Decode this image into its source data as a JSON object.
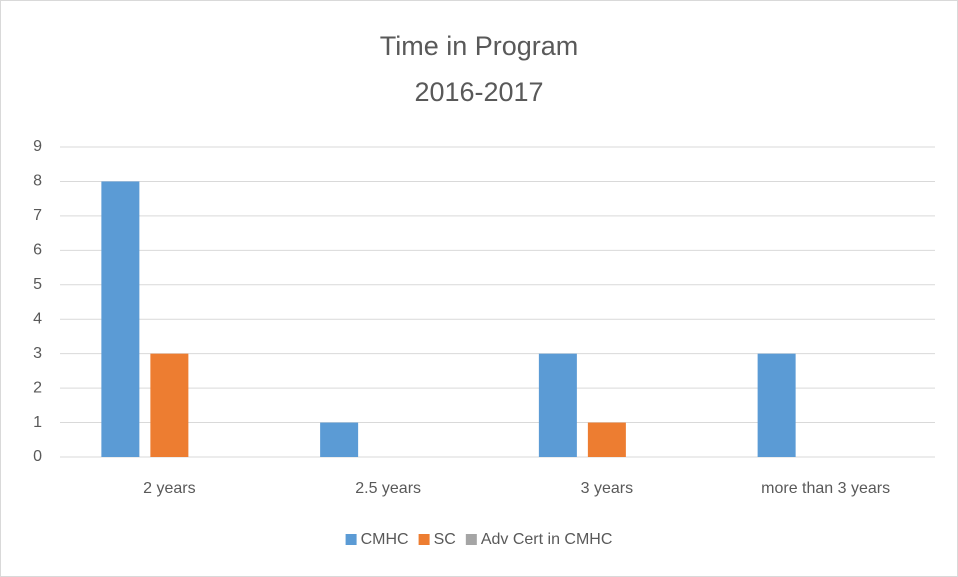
{
  "chart_data": {
    "type": "bar",
    "title": "Time in Program",
    "subtitle": "2016-2017",
    "categories": [
      "2 years",
      "2.5 years",
      "3 years",
      "more than 3 years"
    ],
    "series": [
      {
        "name": "CMHC",
        "color": "#5b9bd5",
        "values": [
          8,
          1,
          3,
          3
        ]
      },
      {
        "name": "SC",
        "color": "#ed7d31",
        "values": [
          3,
          0,
          1,
          0
        ]
      },
      {
        "name": "Adv Cert in CMHC",
        "color": "#a5a5a5",
        "values": [
          0,
          0,
          0,
          0
        ]
      }
    ],
    "ylim": [
      0,
      9
    ],
    "yticks": [
      0,
      1,
      2,
      3,
      4,
      5,
      6,
      7,
      8,
      9
    ],
    "grid": true,
    "legend": "bottom"
  }
}
